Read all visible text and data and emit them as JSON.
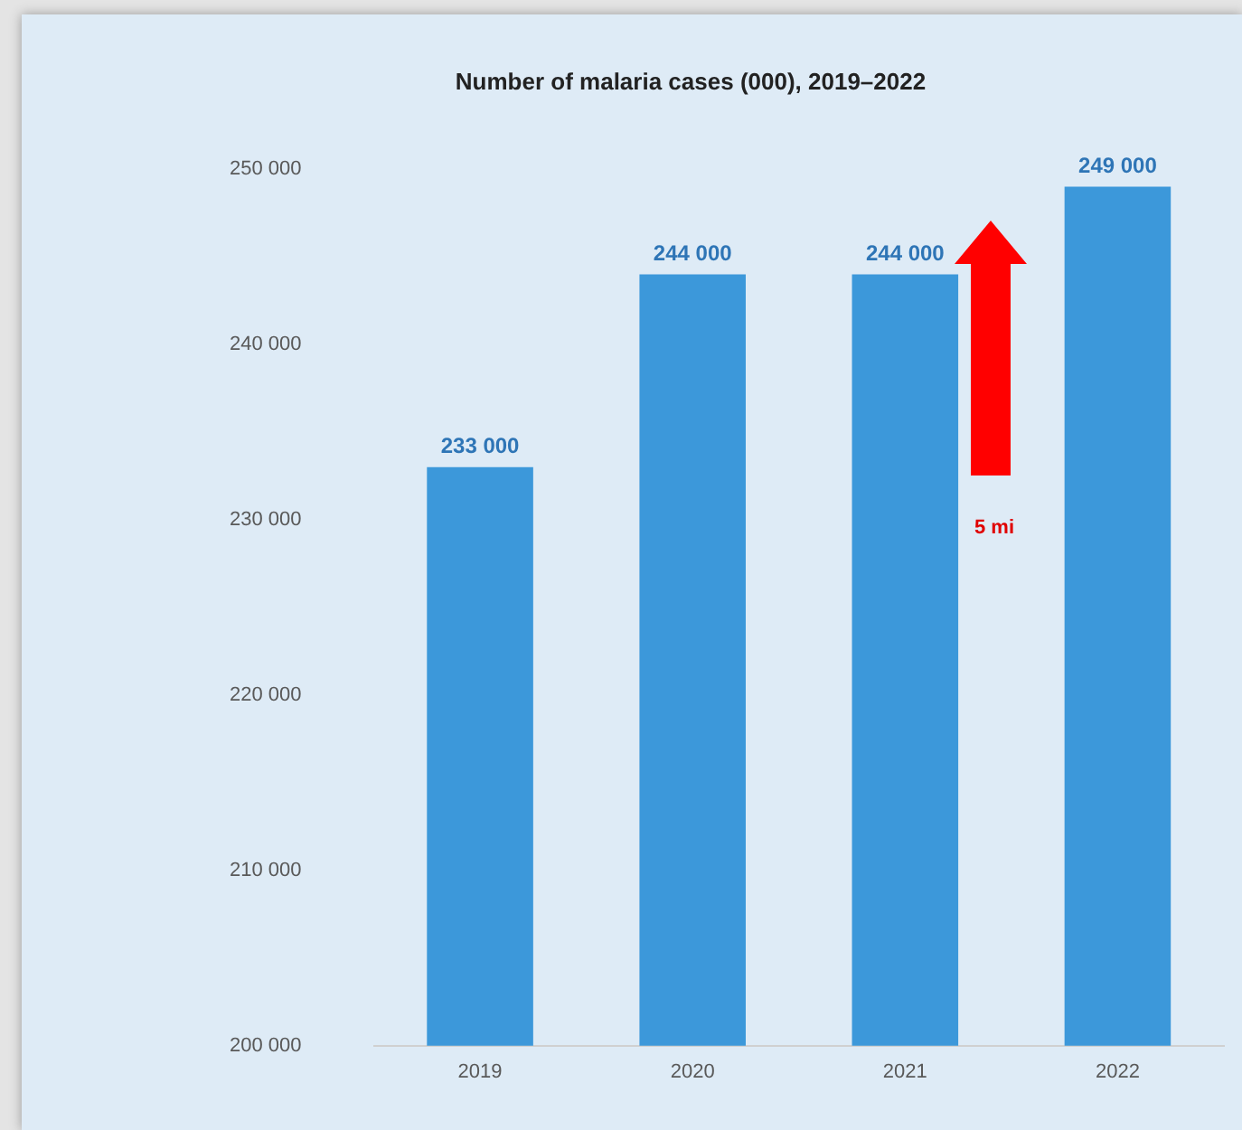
{
  "chart_data": {
    "type": "bar",
    "title": "Number of malaria cases (000), 2019–2022",
    "categories": [
      "2019",
      "2020",
      "2021",
      "2022"
    ],
    "values": [
      233000,
      244000,
      244000,
      249000
    ],
    "value_labels": [
      "233 000",
      "244 000",
      "244 000",
      "249 000"
    ],
    "color": "#3c98da",
    "ylim": [
      200000,
      250000
    ],
    "yticks": [
      {
        "value": 200000,
        "label": "200 000"
      },
      {
        "value": 210000,
        "label": "210 000"
      },
      {
        "value": 220000,
        "label": "220 000"
      },
      {
        "value": 230000,
        "label": "230 000"
      },
      {
        "value": 240000,
        "label": "240 000"
      },
      {
        "value": 250000,
        "label": "250 000"
      }
    ],
    "grid": false,
    "legend": false,
    "annotations": [
      "5 mi"
    ]
  }
}
